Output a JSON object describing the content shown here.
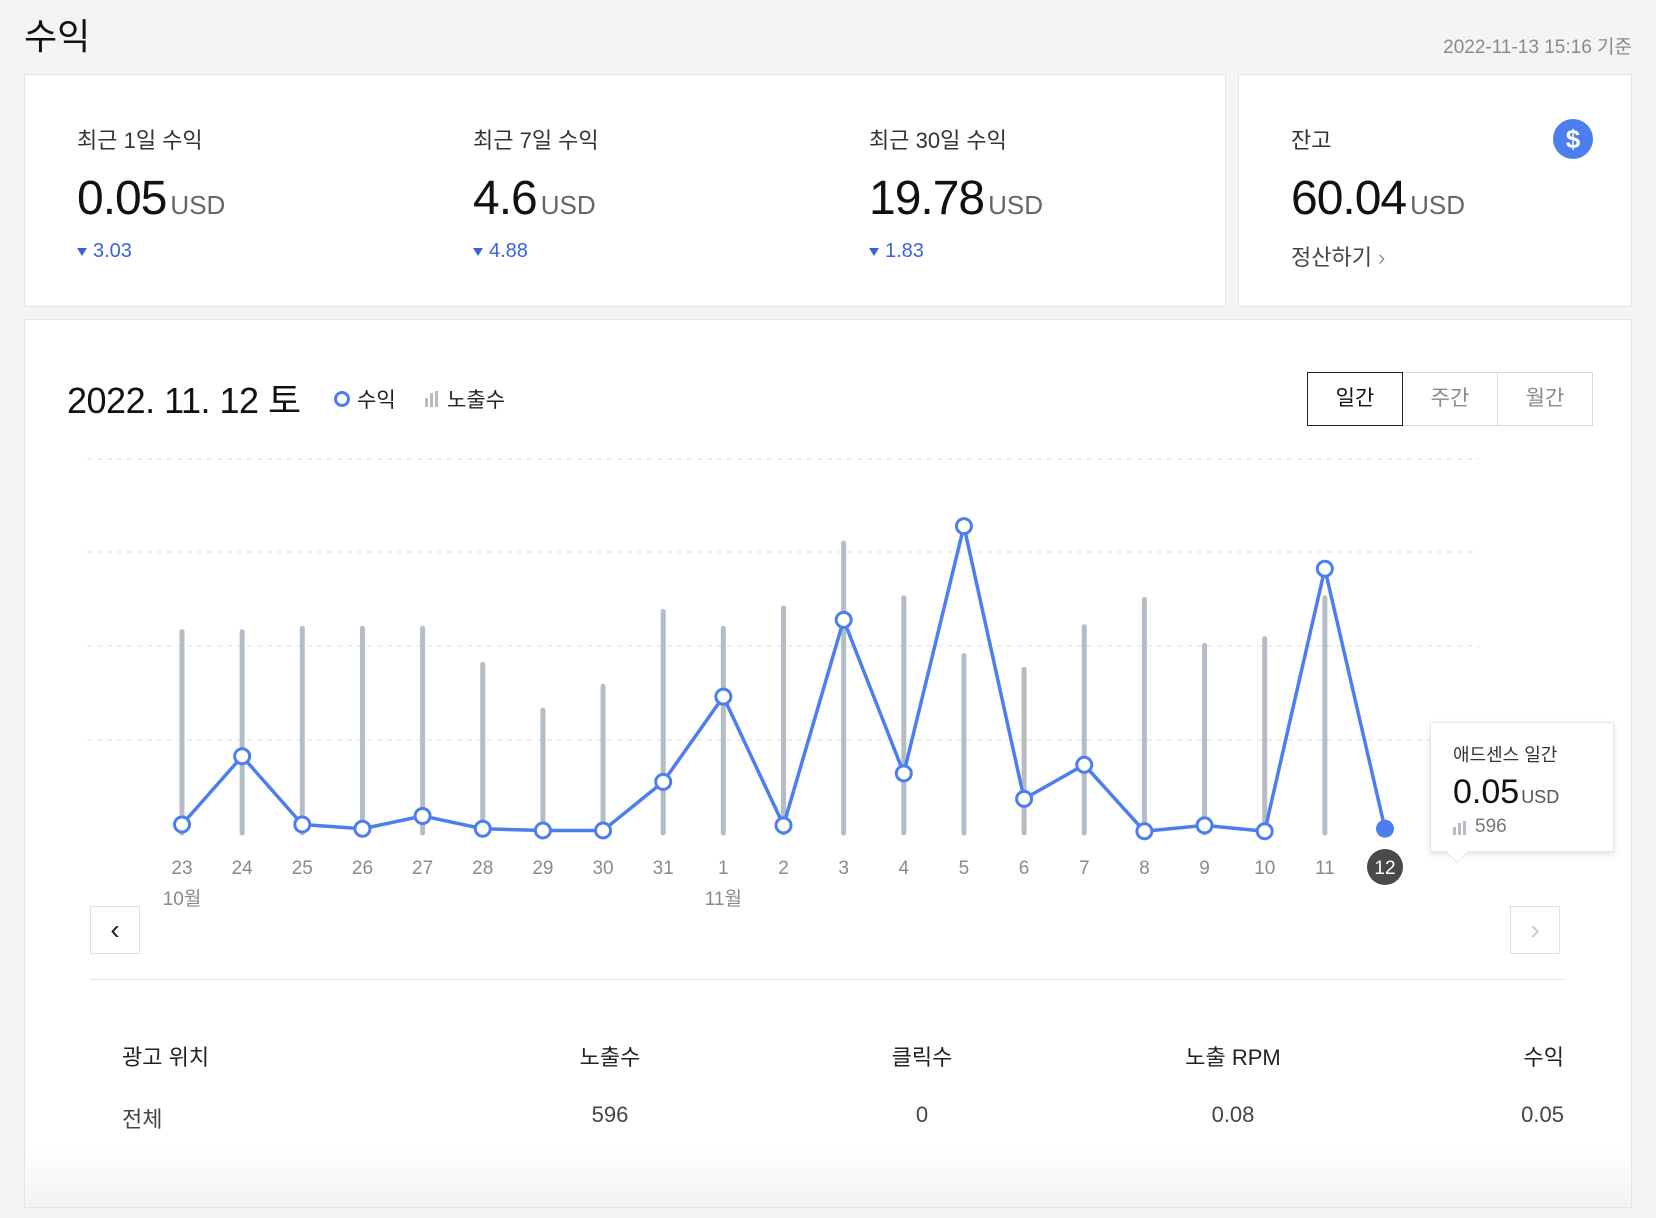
{
  "header": {
    "title": "수익",
    "as_of": "2022-11-13 15:16 기준"
  },
  "stats": [
    {
      "label": "최근 1일 수익",
      "value": "0.05",
      "unit": "USD",
      "delta": "3.03"
    },
    {
      "label": "최근 7일 수익",
      "value": "4.6",
      "unit": "USD",
      "delta": "4.88"
    },
    {
      "label": "최근 30일 수익",
      "value": "19.78",
      "unit": "USD",
      "delta": "1.83"
    }
  ],
  "balance": {
    "label": "잔고",
    "value": "60.04",
    "unit": "USD",
    "link": "정산하기",
    "icon": "dollar-icon"
  },
  "chart": {
    "date": "2022. 11. 12 토",
    "legend_revenue": "수익",
    "legend_impressions": "노출수",
    "tabs": [
      "일간",
      "주간",
      "월간"
    ],
    "active_tab": "일간",
    "revenue_color": "#4d7ef0",
    "impression_color": "#b4bcc6",
    "selected_color": "#4a4a4a"
  },
  "tooltip": {
    "title": "애드센스 일간",
    "value": "0.05",
    "unit": "USD",
    "impressions": "596"
  },
  "chart_data": {
    "type": "line",
    "categories": [
      "23",
      "24",
      "25",
      "26",
      "27",
      "28",
      "29",
      "30",
      "31",
      "1",
      "2",
      "3",
      "4",
      "5",
      "6",
      "7",
      "8",
      "9",
      "10",
      "11",
      "12"
    ],
    "month_labels": [
      {
        "index": 0,
        "label": "10월"
      },
      {
        "index": 9,
        "label": "11월"
      }
    ],
    "selected_index": 20,
    "series": [
      {
        "name": "수익",
        "values": [
          0.1,
          0.9,
          0.1,
          0.05,
          0.2,
          0.05,
          0.03,
          0.03,
          0.6,
          1.6,
          0.09,
          2.5,
          0.7,
          3.6,
          0.4,
          0.8,
          0.02,
          0.09,
          0.02,
          3.1,
          0.05
        ]
      },
      {
        "name": "노출수",
        "values": [
          1180,
          1180,
          1200,
          1200,
          1200,
          990,
          720,
          860,
          1300,
          1200,
          1320,
          1700,
          1380,
          1040,
          960,
          1210,
          1370,
          1100,
          1140,
          1380,
          596
        ]
      }
    ],
    "grid": true,
    "ylim_revenue": [
      0,
      4
    ],
    "ylim_impressions": [
      0,
      2000
    ]
  },
  "table": {
    "headers": [
      "광고 위치",
      "노출수",
      "클릭수",
      "노출 RPM",
      "수익"
    ],
    "rows": [
      [
        "전체",
        "596",
        "0",
        "0.08",
        "0.05"
      ]
    ]
  }
}
